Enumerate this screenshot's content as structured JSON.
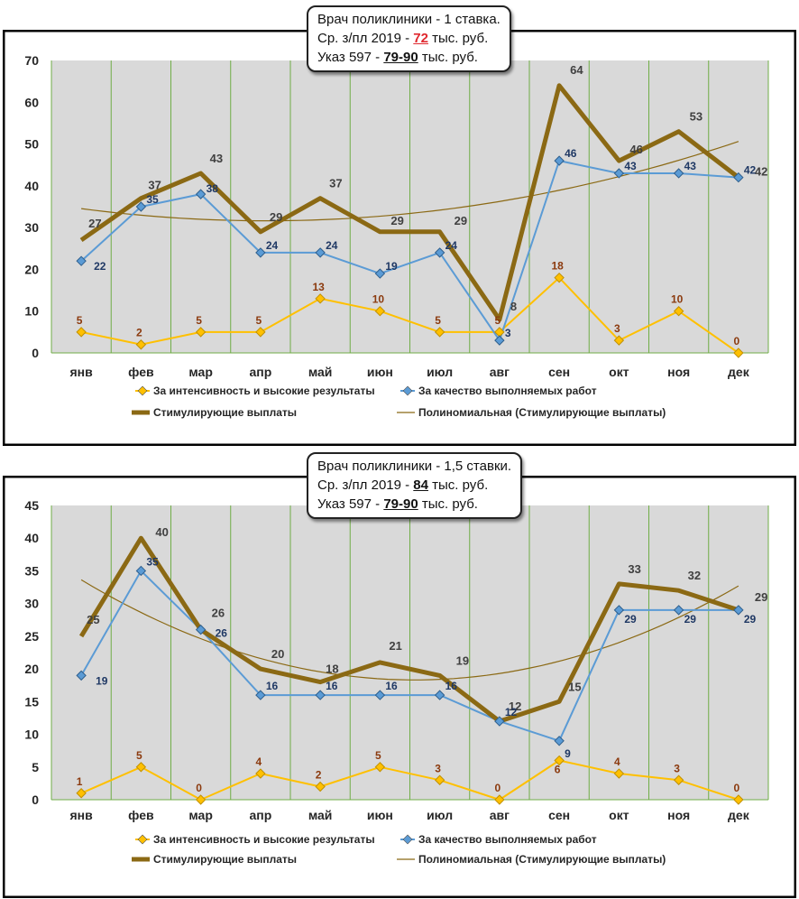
{
  "panels": [
    {
      "info": {
        "title": "Врач поликлиники - 1 ставка.",
        "salary_prefix": "Ср. з/пл 2019 - ",
        "salary_value": "72",
        "salary_suffix": " тыс. руб.",
        "decree_prefix": "Указ 597 - ",
        "decree_value": "79-90",
        "decree_suffix": " тыс. руб."
      }
    },
    {
      "info": {
        "title": "Врач поликлиники - 1,5 ставки.",
        "salary_prefix": "Ср. з/пл 2019 - ",
        "salary_value": "84",
        "salary_suffix": " тыс. руб.",
        "decree_prefix": "Указ 597 - ",
        "decree_value": "79-90",
        "decree_suffix": " тыс. руб."
      }
    }
  ],
  "chart_data": [
    {
      "type": "line",
      "title": "Врач поликлиники - 1 ставка.",
      "categories": [
        "янв",
        "фев",
        "мар",
        "апр",
        "май",
        "июн",
        "июл",
        "авг",
        "сен",
        "окт",
        "ноя",
        "дек"
      ],
      "ylim": [
        0,
        70
      ],
      "yticks": [
        0,
        10,
        20,
        30,
        40,
        50,
        60,
        70
      ],
      "series": [
        {
          "name": "За интенсивность и высокие результаты",
          "color": "#FFC000",
          "values": [
            5,
            2,
            5,
            5,
            13,
            10,
            5,
            5,
            18,
            3,
            10,
            0
          ]
        },
        {
          "name": "За качество выполняемых работ",
          "color": "#5B9BD5",
          "values": [
            22,
            35,
            38,
            24,
            24,
            19,
            24,
            3,
            46,
            43,
            43,
            42
          ]
        },
        {
          "name": "Стимулирующие выплаты",
          "color": "#8B6914",
          "values": [
            27,
            37,
            43,
            29,
            37,
            29,
            29,
            8,
            64,
            46,
            53,
            42
          ]
        }
      ],
      "trendline": {
        "name": "Полиномиальная (Стимулирующие выплаты)",
        "color": "#8B6914",
        "fit": "poly2",
        "of": "Стимулирующие выплаты"
      },
      "legend": [
        "За интенсивность и высокие результаты",
        "За качество выполняемых работ",
        "Стимулирующие выплаты",
        "Полиномиальная (Стимулирующие выплаты)"
      ]
    },
    {
      "type": "line",
      "title": "Врач поликлиники - 1,5 ставки.",
      "categories": [
        "янв",
        "фев",
        "мар",
        "апр",
        "май",
        "июн",
        "июл",
        "авг",
        "сен",
        "окт",
        "ноя",
        "дек"
      ],
      "ylim": [
        0,
        45
      ],
      "yticks": [
        0,
        5,
        10,
        15,
        20,
        25,
        30,
        35,
        40,
        45
      ],
      "series": [
        {
          "name": "За интенсивность и высокие результаты",
          "color": "#FFC000",
          "values": [
            1,
            5,
            0,
            4,
            2,
            5,
            3,
            0,
            6,
            4,
            3,
            0
          ]
        },
        {
          "name": "За качество выполняемых работ",
          "color": "#5B9BD5",
          "values": [
            19,
            35,
            26,
            16,
            16,
            16,
            16,
            12,
            9,
            29,
            29,
            29
          ]
        },
        {
          "name": "Стимулирующие выплаты",
          "color": "#8B6914",
          "values": [
            25,
            40,
            26,
            20,
            18,
            21,
            19,
            12,
            15,
            33,
            32,
            29
          ]
        }
      ],
      "trendline": {
        "name": "Полиномиальная (Стимулирующие выплаты)",
        "color": "#8B6914",
        "fit": "poly2",
        "of": "Стимулирующие выплаты"
      },
      "legend": [
        "За интенсивность и высокие результаты",
        "За качество выполняемых работ",
        "Стимулирующие выплаты",
        "Полиномиальная (Стимулирующие выплаты)"
      ]
    }
  ]
}
